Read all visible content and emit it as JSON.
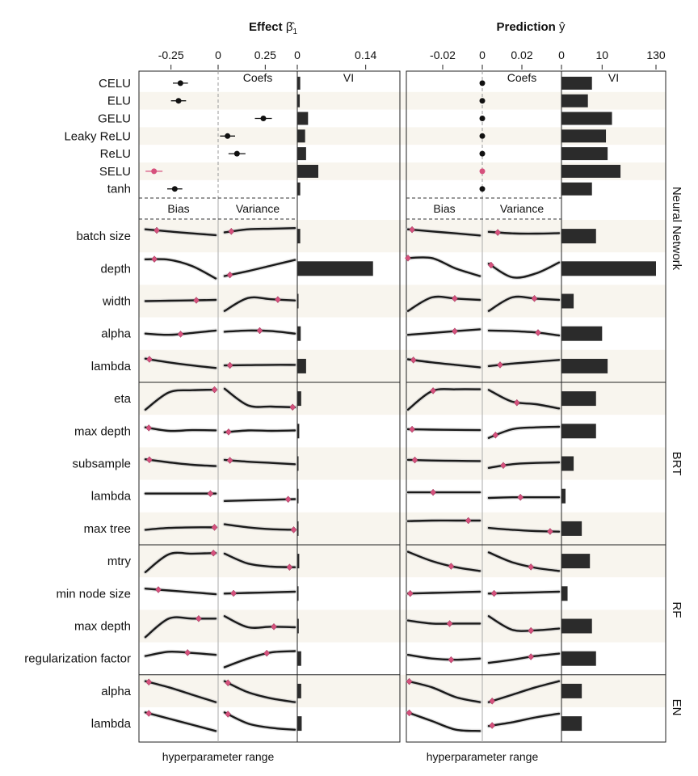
{
  "chart_data": {
    "type": "composite",
    "panels": {
      "effect": {
        "title": "Effect",
        "title_symbol": "β̂",
        "title_subscript": "1",
        "coef_ticks": [
          "-0.25",
          "0",
          "0.25"
        ],
        "vi_ticks": [
          "0",
          "0.14"
        ],
        "coef_range": [
          -0.42,
          0.42
        ],
        "vi_range": [
          0,
          0.21
        ]
      },
      "prediction": {
        "title": "Prediction",
        "title_symbol": "ŷ",
        "coef_ticks": [
          "-0.02",
          "0",
          "0.02"
        ],
        "vi_ticks": [
          "0",
          "10",
          "130"
        ],
        "coef_range": [
          -0.04,
          0.04
        ],
        "vi_log_anchor": [
          0,
          10,
          130
        ]
      }
    },
    "headers": {
      "coefs": "Coefs",
      "vi": "VI",
      "bias": "Bias",
      "variance": "Variance",
      "x_label": "hyperparameter range"
    },
    "activation": {
      "labels": [
        "CELU",
        "ELU",
        "GELU",
        "Leaky ReLU",
        "ReLU",
        "SELU",
        "tanh"
      ],
      "highlight_color": "#d6517d",
      "default_color": "#111111",
      "effect_est": [
        -0.2,
        -0.21,
        0.24,
        0.05,
        0.1,
        -0.34,
        -0.23
      ],
      "effect_err": [
        0.04,
        0.04,
        0.045,
        0.04,
        0.045,
        0.045,
        0.04
      ],
      "effect_highlight": [
        false,
        false,
        false,
        false,
        false,
        true,
        false
      ],
      "effect_vi": [
        0.006,
        0.005,
        0.022,
        0.016,
        0.018,
        0.043,
        0.006
      ],
      "pred_est": [
        0,
        0,
        0,
        0,
        0,
        0,
        0
      ],
      "pred_highlight": [
        false,
        false,
        false,
        false,
        false,
        true,
        false
      ],
      "pred_vi": [
        7.5,
        6.5,
        16,
        12,
        13,
        24,
        7.5
      ]
    },
    "groups": [
      {
        "label": "Neural Network",
        "rows": [
          {
            "label": "batch size",
            "evi": 0.006,
            "pvi": 8.5,
            "eb": {
              "y": [
                0.55,
                0.38,
                0.22,
                0.08
              ],
              "m": 0.18
            },
            "ev": {
              "y": [
                0.3,
                0.55,
                0.6,
                0.65
              ],
              "m": 0.12
            },
            "pb": {
              "y": [
                0.55,
                0.38,
                0.22,
                0.05
              ],
              "m": 0.08
            },
            "pv": {
              "y": [
                0.35,
                0.22,
                0.2,
                0.24
              ],
              "m": 0.15
            }
          },
          {
            "label": "depth",
            "evi": 0.155,
            "pvi": 130,
            "eb": {
              "y": [
                0.75,
                0.72,
                0.2,
                -0.8
              ],
              "m": 0.15
            },
            "ev": {
              "y": [
                -0.6,
                -0.2,
                0.25,
                0.7
              ],
              "m": 0.1
            },
            "pb": {
              "y": [
                0.85,
                0.85,
                0.0,
                -0.6
              ],
              "m": 0.0
            },
            "pv": {
              "y": [
                0.4,
                -0.7,
                -0.4,
                0.5
              ],
              "m": 0.05
            }
          },
          {
            "label": "width",
            "evi": 0.002,
            "pvi": 3,
            "eb": {
              "y": [
                0.0,
                0.03,
                0.06,
                0.1
              ],
              "m": 0.72
            },
            "ev": {
              "y": [
                -0.8,
                0.25,
                0.15,
                0.05
              ],
              "m": 0.75
            },
            "pb": {
              "y": [
                -0.8,
                0.3,
                0.2,
                0.1
              ],
              "m": 0.65
            },
            "pv": {
              "y": [
                -0.8,
                0.3,
                0.2,
                0.1
              ],
              "m": 0.65
            }
          },
          {
            "label": "alpha",
            "evi": 0.007,
            "pvi": 10,
            "eb": {
              "y": [
                0.0,
                -0.1,
                0.05,
                0.25
              ],
              "m": 0.5
            },
            "ev": {
              "y": [
                0.15,
                0.25,
                0.2,
                0.0
              ],
              "m": 0.5
            },
            "pb": {
              "y": [
                -0.1,
                0.05,
                0.2,
                0.35
              ],
              "m": 0.65
            },
            "pv": {
              "y": [
                0.25,
                0.2,
                0.1,
                -0.15
              ],
              "m": 0.7
            }
          },
          {
            "label": "lambda",
            "evi": 0.018,
            "pvi": 13,
            "eb": {
              "y": [
                0.6,
                0.3,
                0.05,
                -0.15
              ],
              "m": 0.08
            },
            "ev": {
              "y": [
                0.05,
                0.08,
                0.1,
                0.1
              ],
              "m": 0.1
            },
            "pb": {
              "y": [
                0.55,
                0.3,
                0.1,
                -0.1
              ],
              "m": 0.1
            },
            "pv": {
              "y": [
                0.0,
                0.2,
                0.35,
                0.5
              ],
              "m": 0.18
            }
          }
        ]
      },
      {
        "label": "BRT",
        "rows": [
          {
            "label": "eta",
            "evi": 0.008,
            "pvi": 8.5,
            "eb": {
              "y": [
                -0.9,
                0.5,
                0.68,
                0.72
              ],
              "m": 0.97
            },
            "ev": {
              "y": [
                0.8,
                -0.55,
                -0.65,
                -0.7
              ],
              "m": 0.95
            },
            "pb": {
              "y": [
                -0.9,
                0.6,
                0.75,
                0.75
              ],
              "m": 0.35
            },
            "pv": {
              "y": [
                0.7,
                -0.25,
                -0.45,
                -0.8
              ],
              "m": 0.4
            }
          },
          {
            "label": "max depth",
            "evi": 0.004,
            "pvi": 8.5,
            "eb": {
              "y": [
                0.3,
                0.02,
                0.08,
                0.06
              ],
              "m": 0.07
            },
            "ev": {
              "y": [
                -0.1,
                0.05,
                0.02,
                0.05
              ],
              "m": 0.08
            },
            "pb": {
              "y": [
                0.15,
                0.12,
                0.1,
                0.08
              ],
              "m": 0.08
            },
            "pv": {
              "y": [
                -0.55,
                0.15,
                0.3,
                0.35
              ],
              "m": 0.12
            }
          },
          {
            "label": "subsample",
            "evi": 0.002,
            "pvi": 3,
            "eb": {
              "y": [
                0.35,
                0.1,
                -0.1,
                -0.2
              ],
              "m": 0.08
            },
            "ev": {
              "y": [
                0.3,
                0.15,
                0.05,
                -0.05
              ],
              "m": 0.1
            },
            "pb": {
              "y": [
                0.3,
                0.25,
                0.22,
                0.2
              ],
              "m": 0.12
            },
            "pv": {
              "y": [
                -0.35,
                -0.05,
                0.05,
                0.1
              ],
              "m": 0.22
            }
          },
          {
            "label": "lambda",
            "evi": 0.001,
            "pvi": 1,
            "eb": {
              "y": [
                0.2,
                0.2,
                0.2,
                0.2
              ],
              "m": 0.9
            },
            "ev": {
              "y": [
                -0.4,
                -0.35,
                -0.3,
                -0.25
              ],
              "m": 0.88
            },
            "pb": {
              "y": [
                0.3,
                0.3,
                0.3,
                0.3
              ],
              "m": 0.35
            },
            "pv": {
              "y": [
                -0.15,
                -0.1,
                -0.1,
                -0.1
              ],
              "m": 0.45
            }
          },
          {
            "label": "max tree",
            "evi": 0.001,
            "pvi": 5,
            "eb": {
              "y": [
                -0.1,
                0.05,
                0.1,
                0.1
              ],
              "m": 0.97
            },
            "ev": {
              "y": [
                0.35,
                0.1,
                -0.05,
                -0.1
              ],
              "m": 0.97
            },
            "pb": {
              "y": [
                0.6,
                0.65,
                0.65,
                0.65
              ],
              "m": 0.82
            },
            "pv": {
              "y": [
                0.05,
                -0.1,
                -0.2,
                -0.25
              ],
              "m": 0.85
            }
          }
        ]
      },
      {
        "label": "RF",
        "rows": [
          {
            "label": "mtry",
            "evi": 0.004,
            "pvi": 7,
            "eb": {
              "y": [
                -0.9,
                0.55,
                0.6,
                0.65
              ],
              "m": 0.95
            },
            "ev": {
              "y": [
                0.6,
                -0.2,
                -0.45,
                -0.5
              ],
              "m": 0.9
            },
            "pb": {
              "y": [
                0.75,
                0.0,
                -0.5,
                -0.8
              ],
              "m": 0.6
            },
            "pv": {
              "y": [
                0.7,
                -0.1,
                -0.55,
                -0.8
              ],
              "m": 0.6
            }
          },
          {
            "label": "min node size",
            "evi": 0.002,
            "pvi": 1.5,
            "eb": {
              "y": [
                0.4,
                0.25,
                0.1,
                -0.05
              ],
              "m": 0.2
            },
            "ev": {
              "y": [
                0.0,
                0.05,
                0.1,
                0.15
              ],
              "m": 0.15
            },
            "pb": {
              "y": [
                0.0,
                0.05,
                0.1,
                0.15
              ],
              "m": 0.05
            },
            "pv": {
              "y": [
                0.0,
                0.05,
                0.1,
                0.15
              ],
              "m": 0.1
            }
          },
          {
            "label": "max depth",
            "evi": 0.003,
            "pvi": 7.5,
            "eb": {
              "y": [
                -0.9,
                0.6,
                0.6,
                0.6
              ],
              "m": 0.75
            },
            "ev": {
              "y": [
                0.8,
                -0.1,
                -0.05,
                -0.1
              ],
              "m": 0.7
            },
            "pb": {
              "y": [
                0.45,
                0.2,
                0.2,
                0.2
              ],
              "m": 0.58
            },
            "pv": {
              "y": [
                0.8,
                -0.3,
                -0.35,
                -0.2
              ],
              "m": 0.6
            }
          },
          {
            "label": "regularization factor",
            "evi": 0.008,
            "pvi": 8.5,
            "eb": {
              "y": [
                0.2,
                0.55,
                0.45,
                0.3
              ],
              "m": 0.6
            },
            "ev": {
              "y": [
                -0.7,
                0.0,
                0.5,
                0.6
              ],
              "m": 0.6
            },
            "pb": {
              "y": [
                0.3,
                0.0,
                -0.1,
                0.0
              ],
              "m": 0.6
            },
            "pv": {
              "y": [
                -0.35,
                -0.1,
                0.2,
                0.4
              ],
              "m": 0.6
            }
          }
        ]
      },
      {
        "label": "EN",
        "rows": [
          {
            "label": "alpha",
            "evi": 0.008,
            "pvi": 5,
            "eb": {
              "y": [
                0.8,
                0.3,
                -0.3,
                -0.9
              ],
              "m": 0.07
            },
            "ev": {
              "y": [
                0.8,
                -0.1,
                -0.6,
                -0.9
              ],
              "m": 0.07
            },
            "pb": {
              "y": [
                0.8,
                0.3,
                -0.5,
                -0.9
              ],
              "m": 0.03
            },
            "pv": {
              "y": [
                -0.9,
                -0.3,
                0.3,
                0.8
              ],
              "m": 0.07
            }
          },
          {
            "label": "lambda",
            "evi": 0.009,
            "pvi": 5,
            "eb": {
              "y": [
                0.9,
                0.4,
                -0.1,
                -0.6
              ],
              "m": 0.07
            },
            "ev": {
              "y": [
                0.9,
                0.0,
                -0.35,
                -0.5
              ],
              "m": 0.07
            },
            "pb": {
              "y": [
                0.9,
                0.2,
                -0.5,
                -0.6
              ],
              "m": 0.03
            },
            "pv": {
              "y": [
                -0.2,
                0.1,
                0.5,
                0.8
              ],
              "m": 0.07
            }
          }
        ]
      }
    ]
  }
}
